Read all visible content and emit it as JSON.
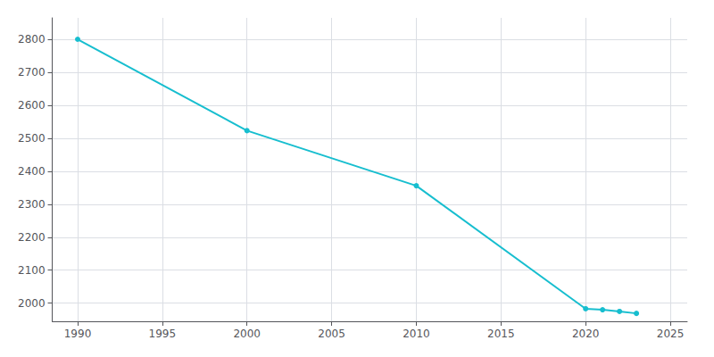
{
  "chart_data": {
    "type": "line",
    "x": [
      1990,
      2000,
      2010,
      2020,
      2021,
      2022,
      2023
    ],
    "values": [
      2800,
      2523,
      2356,
      1983,
      1980,
      1975,
      1969
    ],
    "color": "#17becf",
    "marker": "circle",
    "xlim": [
      1988.5,
      2026
    ],
    "ylim": [
      1945,
      2865
    ],
    "xticks": [
      1990,
      1995,
      2000,
      2005,
      2010,
      2015,
      2020,
      2025
    ],
    "yticks": [
      2000,
      2100,
      2200,
      2300,
      2400,
      2500,
      2600,
      2700,
      2800
    ],
    "grid": true
  }
}
